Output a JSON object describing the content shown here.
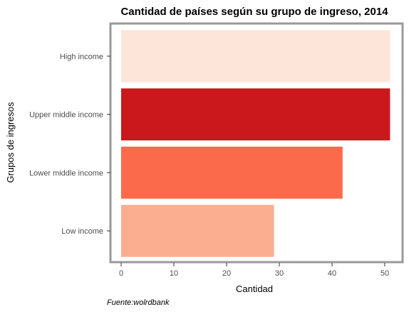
{
  "chart_data": {
    "type": "bar",
    "orientation": "horizontal",
    "title": "Cantidad  de países según su grupo de ingreso, 2014",
    "xlabel": "Cantidad",
    "ylabel": "Grupos de ingresos",
    "caption": "Fuente:wolrdbank",
    "categories": [
      "High income",
      "Upper middle income",
      "Lower middle income",
      "Low income"
    ],
    "values": [
      51,
      51,
      42,
      29
    ],
    "colors": [
      "#fee5d9",
      "#cb181d",
      "#fb6a4a",
      "#fcae91"
    ],
    "xlim": [
      0,
      53
    ],
    "xticks": [
      0,
      10,
      20,
      30,
      40,
      50
    ],
    "grid": false,
    "panel_border_color": "#999999"
  }
}
